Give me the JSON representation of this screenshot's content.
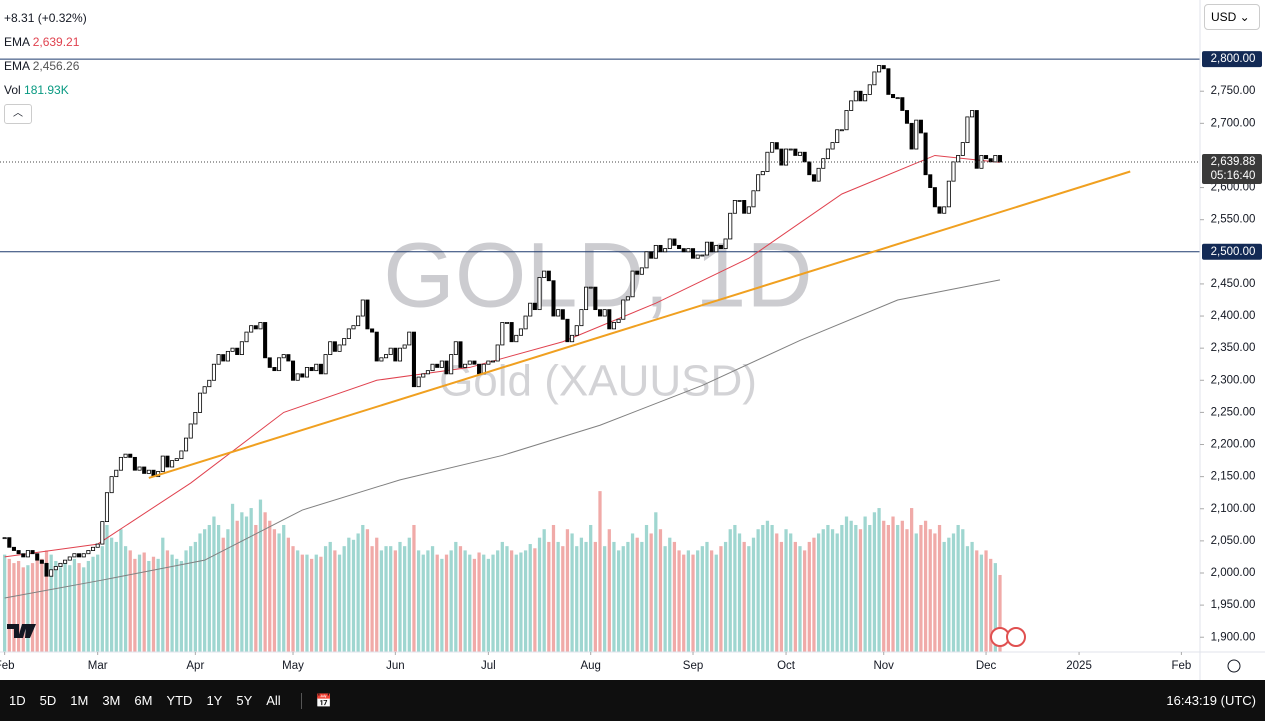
{
  "legend": {
    "change": "+8.31 (+0.32%)",
    "ema1_name": "EMA",
    "ema1_value": "2,639.21",
    "ema2_name": "EMA",
    "ema2_value": "2,456.26",
    "vol_name": "Vol",
    "vol_value": "181.93K"
  },
  "currency": "USD",
  "bottom_bar": {
    "ranges": [
      "1D",
      "5D",
      "1M",
      "3M",
      "6M",
      "YTD",
      "1Y",
      "5Y",
      "All"
    ],
    "time": "16:43:19 (UTC)"
  },
  "chart_data": {
    "type": "candlestick",
    "title": "GOLD, 1D",
    "subtitle": "Gold (XAUUSD)",
    "xlim": [
      -1,
      257
    ],
    "xticks": [
      {
        "value": 0,
        "label": "Feb"
      },
      {
        "value": 20,
        "label": "Mar"
      },
      {
        "value": 41,
        "label": "Apr"
      },
      {
        "value": 62,
        "label": "May"
      },
      {
        "value": 84,
        "label": "Jun"
      },
      {
        "value": 104,
        "label": "Jul"
      },
      {
        "value": 126,
        "label": "Aug"
      },
      {
        "value": 148,
        "label": "Sep"
      },
      {
        "value": 168,
        "label": "Oct"
      },
      {
        "value": 189,
        "label": "Nov"
      },
      {
        "value": 211,
        "label": "Dec"
      },
      {
        "value": 231,
        "label": "2025"
      },
      {
        "value": 253,
        "label": "Feb"
      }
    ],
    "ylim": [
      1877,
      2892
    ],
    "yticks": [
      {
        "value": 1900,
        "label": "1,900.00"
      },
      {
        "value": 1950,
        "label": "1,950.00"
      },
      {
        "value": 2000,
        "label": "2,000.00"
      },
      {
        "value": 2050,
        "label": "2,050.00"
      },
      {
        "value": 2100,
        "label": "2,100.00"
      },
      {
        "value": 2150,
        "label": "2,150.00"
      },
      {
        "value": 2200,
        "label": "2,200.00"
      },
      {
        "value": 2250,
        "label": "2,250.00"
      },
      {
        "value": 2300,
        "label": "2,300.00"
      },
      {
        "value": 2350,
        "label": "2,350.00"
      },
      {
        "value": 2400,
        "label": "2,400.00"
      },
      {
        "value": 2450,
        "label": "2,450.00"
      },
      {
        "value": 2550,
        "label": "2,550.00"
      },
      {
        "value": 2600,
        "label": "2,600.00"
      },
      {
        "value": 2700,
        "label": "2,700.00"
      },
      {
        "value": 2750,
        "label": "2,750.00"
      }
    ],
    "y2lim": [
      0,
      1540
    ],
    "series": [
      {
        "name": "Gold (XAUUSD)",
        "up_color": "#ffffff",
        "down_color": "#000000",
        "values": [
          2055,
          2040,
          2035,
          2030,
          2025,
          2035,
          2030,
          2020,
          2015,
          1995,
          2005,
          2010,
          2015,
          2020,
          2025,
          2030,
          2025,
          2030,
          2035,
          2040,
          2045,
          2080,
          2125,
          2150,
          2160,
          2180,
          2185,
          2180,
          2160,
          2165,
          2155,
          2160,
          2150,
          2158,
          2182,
          2165,
          2175,
          2178,
          2190,
          2210,
          2232,
          2250,
          2280,
          2290,
          2300,
          2325,
          2340,
          2330,
          2345,
          2350,
          2340,
          2360,
          2375,
          2385,
          2380,
          2390,
          2335,
          2320,
          2315,
          2335,
          2340,
          2330,
          2300,
          2310,
          2305,
          2320,
          2315,
          2325,
          2310,
          2340,
          2360,
          2345,
          2355,
          2365,
          2380,
          2385,
          2400,
          2425,
          2380,
          2375,
          2330,
          2335,
          2340,
          2350,
          2330,
          2350,
          2355,
          2375,
          2290,
          2305,
          2310,
          2315,
          2325,
          2320,
          2330,
          2310,
          2340,
          2360,
          2320,
          2325,
          2330,
          2325,
          2310,
          2325,
          2330,
          2330,
          2355,
          2390,
          2390,
          2360,
          2370,
          2380,
          2400,
          2420,
          2410,
          2460,
          2470,
          2455,
          2400,
          2410,
          2395,
          2360,
          2370,
          2385,
          2410,
          2445,
          2445,
          2410,
          2400,
          2410,
          2380,
          2390,
          2395,
          2425,
          2430,
          2470,
          2465,
          2475,
          2500,
          2490,
          2510,
          2500,
          2505,
          2520,
          2510,
          2505,
          2500,
          2505,
          2490,
          2495,
          2495,
          2515,
          2500,
          2510,
          2505,
          2520,
          2560,
          2580,
          2580,
          2560,
          2570,
          2595,
          2620,
          2625,
          2655,
          2670,
          2660,
          2635,
          2660,
          2660,
          2650,
          2655,
          2640,
          2620,
          2610,
          2630,
          2645,
          2660,
          2670,
          2690,
          2690,
          2720,
          2735,
          2750,
          2735,
          2745,
          2760,
          2780,
          2790,
          2785,
          2745,
          2740,
          2740,
          2720,
          2700,
          2660,
          2705,
          2685,
          2620,
          2600,
          2570,
          2560,
          2570,
          2610,
          2640,
          2650,
          2670,
          2710,
          2720,
          2630,
          2650,
          2645,
          2640,
          2650,
          2639.88
        ]
      },
      {
        "name": "Vol",
        "axis": "y2",
        "up_color": "#9fd6d0",
        "down_color": "#f0aaa8",
        "values": [
          230,
          220,
          210,
          215,
          200,
          205,
          210,
          225,
          220,
          240,
          230,
          215,
          200,
          210,
          205,
          220,
          210,
          200,
          215,
          225,
          230,
          250,
          300,
          270,
          260,
          290,
          250,
          240,
          220,
          230,
          235,
          215,
          225,
          220,
          270,
          240,
          230,
          220,
          215,
          240,
          250,
          260,
          280,
          290,
          300,
          320,
          300,
          270,
          290,
          350,
          310,
          330,
          320,
          340,
          300,
          360,
          330,
          310,
          290,
          280,
          300,
          270,
          250,
          240,
          230,
          230,
          220,
          230,
          225,
          250,
          260,
          240,
          230,
          250,
          270,
          265,
          280,
          300,
          290,
          250,
          270,
          240,
          250,
          250,
          240,
          260,
          250,
          270,
          300,
          240,
          230,
          240,
          250,
          230,
          220,
          230,
          240,
          260,
          250,
          240,
          230,
          220,
          235,
          230,
          220,
          230,
          240,
          260,
          250,
          240,
          230,
          235,
          240,
          255,
          245,
          270,
          290,
          260,
          300,
          260,
          250,
          290,
          280,
          250,
          270,
          260,
          300,
          260,
          380,
          250,
          290,
          260,
          240,
          250,
          260,
          280,
          270,
          260,
          300,
          280,
          330,
          290,
          250,
          270,
          260,
          240,
          230,
          240,
          230,
          240,
          250,
          260,
          240,
          230,
          250,
          260,
          290,
          300,
          280,
          260,
          250,
          270,
          290,
          300,
          310,
          300,
          280,
          260,
          290,
          280,
          260,
          250,
          240,
          260,
          270,
          280,
          290,
          300,
          290,
          280,
          300,
          320,
          310,
          300,
          290,
          320,
          300,
          330,
          340,
          310,
          300,
          320,
          300,
          310,
          290,
          340,
          280,
          300,
          310,
          290,
          280,
          300,
          260,
          270,
          280,
          300,
          290,
          250,
          260,
          240,
          230,
          240,
          220,
          210,
          181.93
        ]
      },
      {
        "name": "EMA",
        "color": "#e0424f",
        "x": [
          0,
          20,
          40,
          60,
          80,
          100,
          120,
          140,
          160,
          180,
          200,
          214
        ],
        "values": [
          2025,
          2045,
          2140,
          2250,
          2300,
          2320,
          2360,
          2420,
          2490,
          2590,
          2650,
          2639.21
        ]
      },
      {
        "name": "EMA",
        "color": "#808080",
        "x": [
          0,
          21,
          43,
          64,
          85,
          107,
          128,
          150,
          171,
          192,
          214
        ],
        "values": [
          1961,
          1989,
          2020,
          2098,
          2145,
          2183,
          2230,
          2292,
          2362,
          2425,
          2456.26
        ]
      }
    ],
    "trendline": {
      "color": "#f0a020",
      "x": [
        31,
        242
      ],
      "values": [
        2148,
        2625
      ]
    },
    "hlines": [
      {
        "value": 2800,
        "label": "2,800.00"
      },
      {
        "value": 2500,
        "label": "2,500.00"
      }
    ],
    "last_price": {
      "value": 2639.88,
      "label": "2,639.88",
      "countdown": "05:16:40"
    }
  }
}
